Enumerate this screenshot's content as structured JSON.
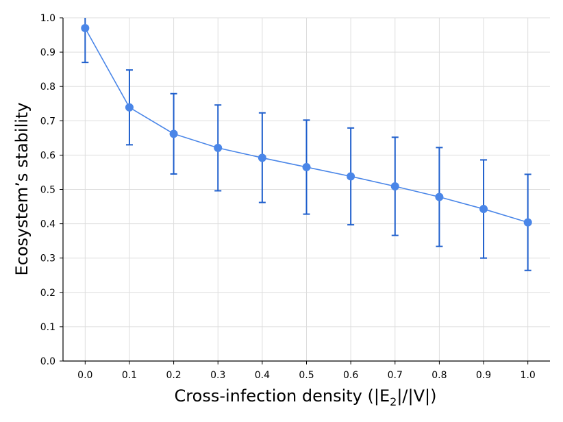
{
  "chart_data": {
    "type": "line",
    "title": "",
    "xlabel": "Cross-infection density (|E",
    "xlabel_sub": "2",
    "xlabel_tail": "|/|V|)",
    "ylabel": "Ecosystem’s stability",
    "x": [
      0.0,
      0.1,
      0.2,
      0.3,
      0.4,
      0.5,
      0.6,
      0.7,
      0.8,
      0.9,
      1.0
    ],
    "x_tick_labels": [
      "0.0",
      "0.1",
      "0.2",
      "0.3",
      "0.4",
      "0.5",
      "0.6",
      "0.7",
      "0.8",
      "0.9",
      "1.0"
    ],
    "y_tick_values": [
      0.0,
      0.1,
      0.2,
      0.3,
      0.4,
      0.5,
      0.6,
      0.7,
      0.8,
      0.9,
      1.0
    ],
    "y_tick_labels": [
      "0.0",
      "0.1",
      "0.2",
      "0.3",
      "0.4",
      "0.5",
      "0.6",
      "0.7",
      "0.8",
      "0.9",
      "1.0"
    ],
    "xlim": [
      -0.05,
      1.05
    ],
    "ylim": [
      0.0,
      1.0
    ],
    "grid": true,
    "series": [
      {
        "values": [
          0.97,
          0.739,
          0.662,
          0.621,
          0.592,
          0.565,
          0.538,
          0.509,
          0.478,
          0.443,
          0.404
        ],
        "error_lower": [
          0.87,
          0.63,
          0.545,
          0.496,
          0.462,
          0.428,
          0.397,
          0.366,
          0.334,
          0.3,
          0.264
        ],
        "error_upper": [
          1.0,
          0.848,
          0.779,
          0.746,
          0.723,
          0.702,
          0.679,
          0.652,
          0.622,
          0.586,
          0.544
        ],
        "line_color": "#4a86e8",
        "marker_color": "#4a86e8",
        "error_color": "#1f5fcc"
      }
    ],
    "colors": {
      "axis": "#000000",
      "grid": "#dddddd"
    }
  }
}
